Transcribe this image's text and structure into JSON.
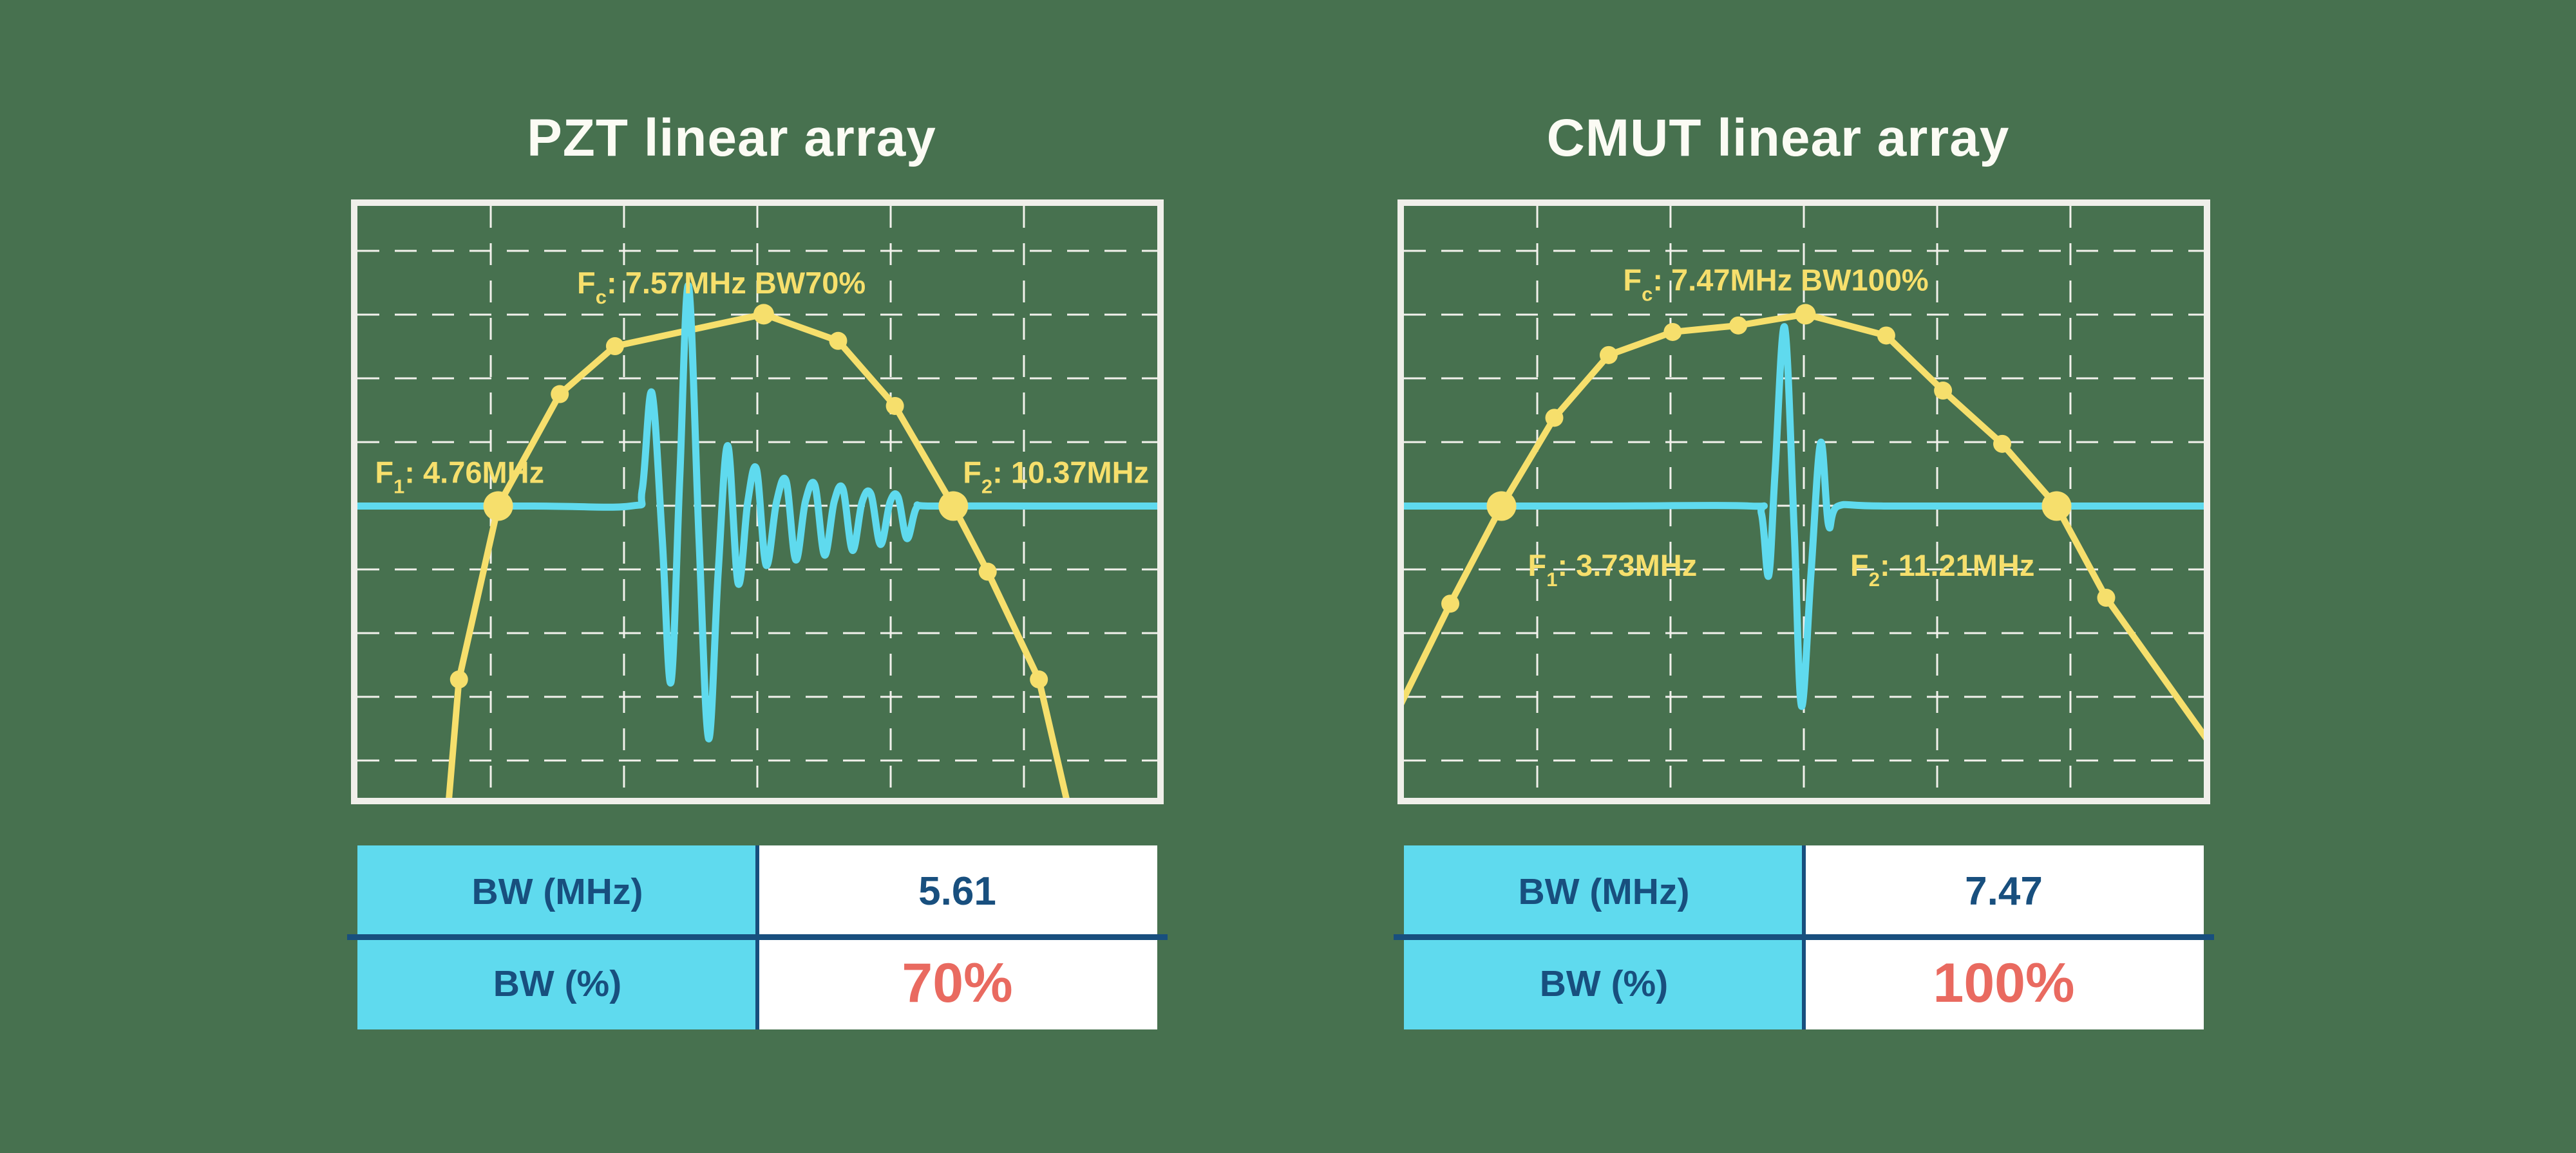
{
  "colors": {
    "background_green": "#47714F",
    "curve_yellow": "#F6DF6C",
    "waveform_cyan": "#5FDAEE",
    "frame_white": "#F0EFEA",
    "table_navy": "#184F7E",
    "table_red": "#E96A60",
    "title_white": "#FBFBF4"
  },
  "grid": {
    "v": [
      0.1667,
      0.3333,
      0.5,
      0.6667,
      0.8333
    ],
    "h": [
      0.076,
      0.1837,
      0.2913,
      0.399,
      0.5065,
      0.6141,
      0.7217,
      0.8293,
      0.937
    ]
  },
  "chart_data": [
    {
      "type": "line",
      "title": "PZT linear array",
      "fc_mhz": 7.57,
      "f1_mhz": 4.76,
      "f2_mhz": 10.37,
      "bw_mhz": 5.61,
      "bw_pct": 70,
      "legend": "yellow curve: frequency spectrum with -6dB markers; cyan trace: pulse echo waveform",
      "labels": {
        "fc": {
          "anchor": "middle",
          "x": 0.455,
          "y": 0.148,
          "base": "F",
          "sub": "c",
          "rest": ": 7.57MHz BW70%"
        },
        "f1": {
          "anchor": "start",
          "x": 0.022,
          "y": 0.468,
          "base": "F",
          "sub": "1",
          "rest": ": 4.76MHz"
        },
        "f2": {
          "anchor": "start",
          "x": 0.757,
          "y": 0.468,
          "base": "F",
          "sub": "2",
          "rest": ": 10.37MHz"
        }
      },
      "baseline_y": 0.507,
      "spectrum": [
        [
          0.112,
          1.04,
          ""
        ],
        [
          0.127,
          0.8,
          "d"
        ],
        [
          0.176,
          0.507,
          "b"
        ],
        [
          0.253,
          0.318,
          "d"
        ],
        [
          0.322,
          0.237,
          "d"
        ],
        [
          0.508,
          0.183,
          "p"
        ],
        [
          0.601,
          0.228,
          "d"
        ],
        [
          0.672,
          0.338,
          "d"
        ],
        [
          0.745,
          0.507,
          "b"
        ],
        [
          0.788,
          0.618,
          "d"
        ],
        [
          0.852,
          0.8,
          "d"
        ],
        [
          0.893,
          1.04,
          ""
        ]
      ],
      "pulse": [
        [
          0,
          0.507
        ],
        [
          0.22,
          0.507
        ],
        [
          0.342,
          0.507
        ],
        [
          0.356,
          0.48
        ],
        [
          0.368,
          0.315
        ],
        [
          0.381,
          0.56
        ],
        [
          0.392,
          0.805
        ],
        [
          0.403,
          0.46
        ],
        [
          0.414,
          0.135
        ],
        [
          0.427,
          0.56
        ],
        [
          0.439,
          0.9
        ],
        [
          0.451,
          0.62
        ],
        [
          0.463,
          0.405
        ],
        [
          0.476,
          0.638
        ],
        [
          0.488,
          0.5
        ],
        [
          0.499,
          0.445
        ],
        [
          0.511,
          0.607
        ],
        [
          0.524,
          0.5
        ],
        [
          0.536,
          0.465
        ],
        [
          0.548,
          0.598
        ],
        [
          0.56,
          0.5
        ],
        [
          0.572,
          0.472
        ],
        [
          0.584,
          0.59
        ],
        [
          0.596,
          0.5
        ],
        [
          0.607,
          0.478
        ],
        [
          0.619,
          0.582
        ],
        [
          0.631,
          0.5
        ],
        [
          0.642,
          0.487
        ],
        [
          0.654,
          0.572
        ],
        [
          0.666,
          0.5
        ],
        [
          0.676,
          0.492
        ],
        [
          0.687,
          0.562
        ],
        [
          0.699,
          0.51
        ],
        [
          0.716,
          0.507
        ],
        [
          0.85,
          0.507
        ],
        [
          1,
          0.507
        ]
      ],
      "table": {
        "rows": [
          {
            "label": "BW (MHz)",
            "value": "5.61"
          },
          {
            "label": "BW (%)",
            "value": "70%"
          }
        ]
      }
    },
    {
      "type": "line",
      "title": "CMUT linear array",
      "fc_mhz": 7.47,
      "f1_mhz": 3.73,
      "f2_mhz": 11.21,
      "bw_mhz": 7.47,
      "bw_pct": 100,
      "legend": "yellow curve: frequency spectrum with -6dB markers; cyan trace: pulse echo waveform",
      "labels": {
        "fc": {
          "anchor": "middle",
          "x": 0.465,
          "y": 0.143,
          "base": "F",
          "sub": "c",
          "rest": ": 7.47MHz BW100%"
        },
        "f1": {
          "anchor": "start",
          "x": 0.155,
          "y": 0.625,
          "base": "F",
          "sub": "1",
          "rest": ": 3.73MHz"
        },
        "f2": {
          "anchor": "start",
          "x": 0.558,
          "y": 0.625,
          "base": "F",
          "sub": "2",
          "rest": ": 11.21MHz"
        }
      },
      "baseline_y": 0.507,
      "spectrum": [
        [
          -0.005,
          0.845,
          ""
        ],
        [
          0.058,
          0.672,
          "d"
        ],
        [
          0.122,
          0.507,
          "b"
        ],
        [
          0.188,
          0.358,
          "d"
        ],
        [
          0.256,
          0.252,
          "d"
        ],
        [
          0.336,
          0.213,
          "d"
        ],
        [
          0.418,
          0.202,
          "d"
        ],
        [
          0.502,
          0.183,
          "p"
        ],
        [
          0.603,
          0.219,
          "d"
        ],
        [
          0.674,
          0.312,
          "d"
        ],
        [
          0.748,
          0.402,
          "d"
        ],
        [
          0.816,
          0.507,
          "b"
        ],
        [
          0.878,
          0.662,
          "d"
        ],
        [
          1.006,
          0.905,
          ""
        ]
      ],
      "pulse": [
        [
          0,
          0.507
        ],
        [
          0.25,
          0.507
        ],
        [
          0.432,
          0.507
        ],
        [
          0.447,
          0.52
        ],
        [
          0.456,
          0.625
        ],
        [
          0.464,
          0.45
        ],
        [
          0.476,
          0.205
        ],
        [
          0.488,
          0.55
        ],
        [
          0.497,
          0.845
        ],
        [
          0.509,
          0.62
        ],
        [
          0.521,
          0.4
        ],
        [
          0.531,
          0.54
        ],
        [
          0.543,
          0.507
        ],
        [
          0.6,
          0.507
        ],
        [
          0.85,
          0.507
        ],
        [
          1,
          0.507
        ]
      ],
      "table": {
        "rows": [
          {
            "label": "BW (MHz)",
            "value": "7.47"
          },
          {
            "label": "BW (%)",
            "value": "100%"
          }
        ]
      }
    }
  ]
}
